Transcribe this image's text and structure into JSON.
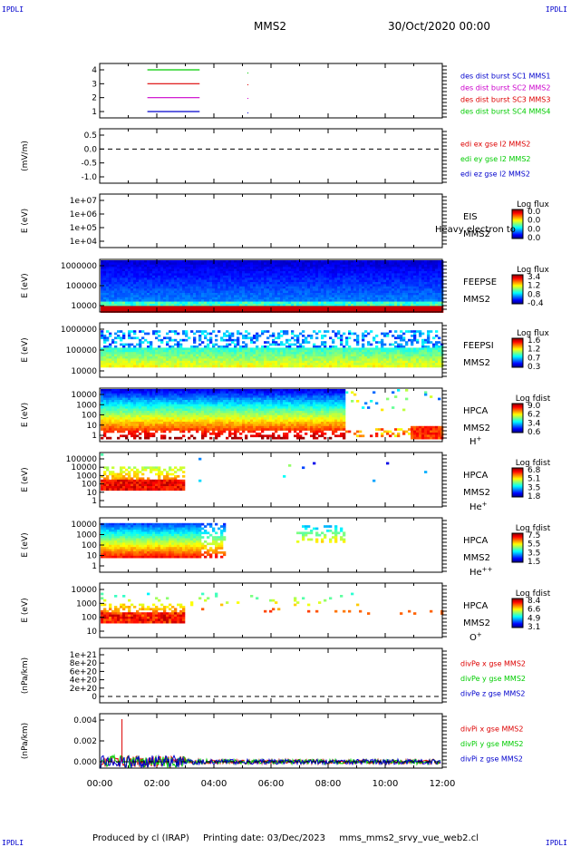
{
  "corner_label": "IPDLI",
  "header": {
    "spacecraft": "MMS2",
    "datetime": "30/Oct/2020 00:00"
  },
  "x_axis": {
    "ticks": [
      "00:00",
      "02:00",
      "04:00",
      "06:00",
      "08:00",
      "10:00",
      "12:00"
    ]
  },
  "footer": {
    "produced_by": "Produced by cl (IRAP)",
    "printing_date": "Printing date: 03/Dec/2023",
    "script": "mms_mms2_srvy_vue_web2.cl"
  },
  "colors": {
    "red": "#dd0000",
    "green": "#00cc00",
    "blue": "#0000cc",
    "magenta": "#cc00cc"
  },
  "chart_data": [
    {
      "type": "line",
      "panel": "burst",
      "yticks": [
        "4",
        "3",
        "2",
        "1"
      ],
      "legend": [
        {
          "text": "des dist burst SC1 MMS1",
          "color": "#0000cc"
        },
        {
          "text": "des dist burst SC2 MMS2",
          "color": "#cc00cc"
        },
        {
          "text": "des dist burst SC3 MMS3",
          "color": "#dd0000"
        },
        {
          "text": "des dist burst SC4 MMS4",
          "color": "#00cc00"
        }
      ],
      "series": [
        {
          "level": 4,
          "color": "#00cc00",
          "x": [
            1.67,
            3.5
          ]
        },
        {
          "level": 3,
          "color": "#dd0000",
          "x": [
            1.67,
            3.5
          ]
        },
        {
          "level": 2,
          "color": "#cc00cc",
          "x": [
            1.67,
            3.5
          ]
        },
        {
          "level": 1,
          "color": "#0000cc",
          "x": [
            1.67,
            3.5
          ]
        }
      ]
    },
    {
      "type": "line",
      "panel": "edi",
      "ylabel": "(mV/m)",
      "yticks": [
        "0.5",
        "0.0",
        "-0.5",
        "-1.0"
      ],
      "legend": [
        {
          "text": "edi ex gse l2 MMS2",
          "color": "#dd0000"
        },
        {
          "text": "edi ey gse l2 MMS2",
          "color": "#00cc00"
        },
        {
          "text": "edi ez gse l2 MMS2",
          "color": "#0000cc"
        }
      ]
    },
    {
      "type": "heatmap",
      "panel": "eis",
      "ylabel": "E (eV)",
      "yticks": [
        "1e+07",
        "1e+06",
        "1e+05",
        "1e+04"
      ],
      "labels": [
        "EIS",
        "MMS2"
      ],
      "overlay": "Heavy electron to",
      "colorbar": {
        "title": "Log flux",
        "ticks": [
          "0.0",
          "0.0",
          "0.0",
          "0.0"
        ]
      }
    },
    {
      "type": "heatmap",
      "panel": "feeps_e",
      "ylabel": "E (eV)",
      "yticks": [
        "1000000",
        "100000",
        "10000"
      ],
      "labels": [
        "FEEPSE",
        "MMS2"
      ],
      "colorbar": {
        "title": "Log flux",
        "ticks": [
          "3.4",
          "1.2",
          "0.8",
          "-0.4"
        ]
      }
    },
    {
      "type": "heatmap",
      "panel": "feeps_i",
      "ylabel": "E (eV)",
      "yticks": [
        "1000000",
        "100000",
        "10000"
      ],
      "labels": [
        "FEEPSI",
        "MMS2"
      ],
      "colorbar": {
        "title": "Log flux",
        "ticks": [
          "1.6",
          "1.2",
          "0.7",
          "0.3"
        ]
      }
    },
    {
      "type": "heatmap",
      "panel": "hpca_h",
      "ylabel": "E (eV)",
      "yticks": [
        "10000",
        "1000",
        "100",
        "10",
        "1"
      ],
      "labels": [
        "HPCA",
        "MMS2"
      ],
      "species": {
        "base": "H",
        "sup": "+"
      },
      "colorbar": {
        "title": "Log fdist",
        "ticks": [
          "9.0",
          "6.2",
          "3.4",
          "0.6"
        ]
      }
    },
    {
      "type": "heatmap",
      "panel": "hpca_he",
      "ylabel": "E (eV)",
      "yticks": [
        "100000",
        "10000",
        "1000",
        "100",
        "10",
        "1"
      ],
      "labels": [
        "HPCA",
        "MMS2"
      ],
      "species": {
        "base": "He",
        "sup": "+"
      },
      "colorbar": {
        "title": "Log fdist",
        "ticks": [
          "6.8",
          "5.1",
          "3.5",
          "1.8"
        ]
      }
    },
    {
      "type": "heatmap",
      "panel": "hpca_he2",
      "ylabel": "E (eV)",
      "yticks": [
        "10000",
        "1000",
        "100",
        "10",
        "1"
      ],
      "labels": [
        "HPCA",
        "MMS2"
      ],
      "species": {
        "base": "He",
        "sup": "++"
      },
      "colorbar": {
        "title": "Log fdist",
        "ticks": [
          "7.5",
          "5.5",
          "3.5",
          "1.5"
        ]
      }
    },
    {
      "type": "heatmap",
      "panel": "hpca_o",
      "ylabel": "E (eV)",
      "yticks": [
        "10000",
        "1000",
        "100",
        "10"
      ],
      "labels": [
        "HPCA",
        "MMS2"
      ],
      "species": {
        "base": "O",
        "sup": "+"
      },
      "colorbar": {
        "title": "Log fdist",
        "ticks": [
          "8.4",
          "6.6",
          "4.9",
          "3.1"
        ]
      }
    },
    {
      "type": "line",
      "panel": "divpe",
      "ylabel": "(nPa/km)",
      "yticks": [
        "1e+21",
        "8e+20",
        "6e+20",
        "4e+20",
        "2e+20",
        "0"
      ],
      "legend": [
        {
          "text": "divPe x gse MMS2",
          "color": "#dd0000"
        },
        {
          "text": "divPe y gse MMS2",
          "color": "#00cc00"
        },
        {
          "text": "divPe z gse MMS2",
          "color": "#0000cc"
        }
      ]
    },
    {
      "type": "line",
      "panel": "divpi",
      "ylabel": "(nPa/km)",
      "yticks": [
        "0.004",
        "0.002",
        "0.000"
      ],
      "legend": [
        {
          "text": "divPi x gse MMS2",
          "color": "#dd0000"
        },
        {
          "text": "divPi y gse MMS2",
          "color": "#00cc00"
        },
        {
          "text": "divPi z gse MMS2",
          "color": "#0000cc"
        }
      ]
    }
  ]
}
